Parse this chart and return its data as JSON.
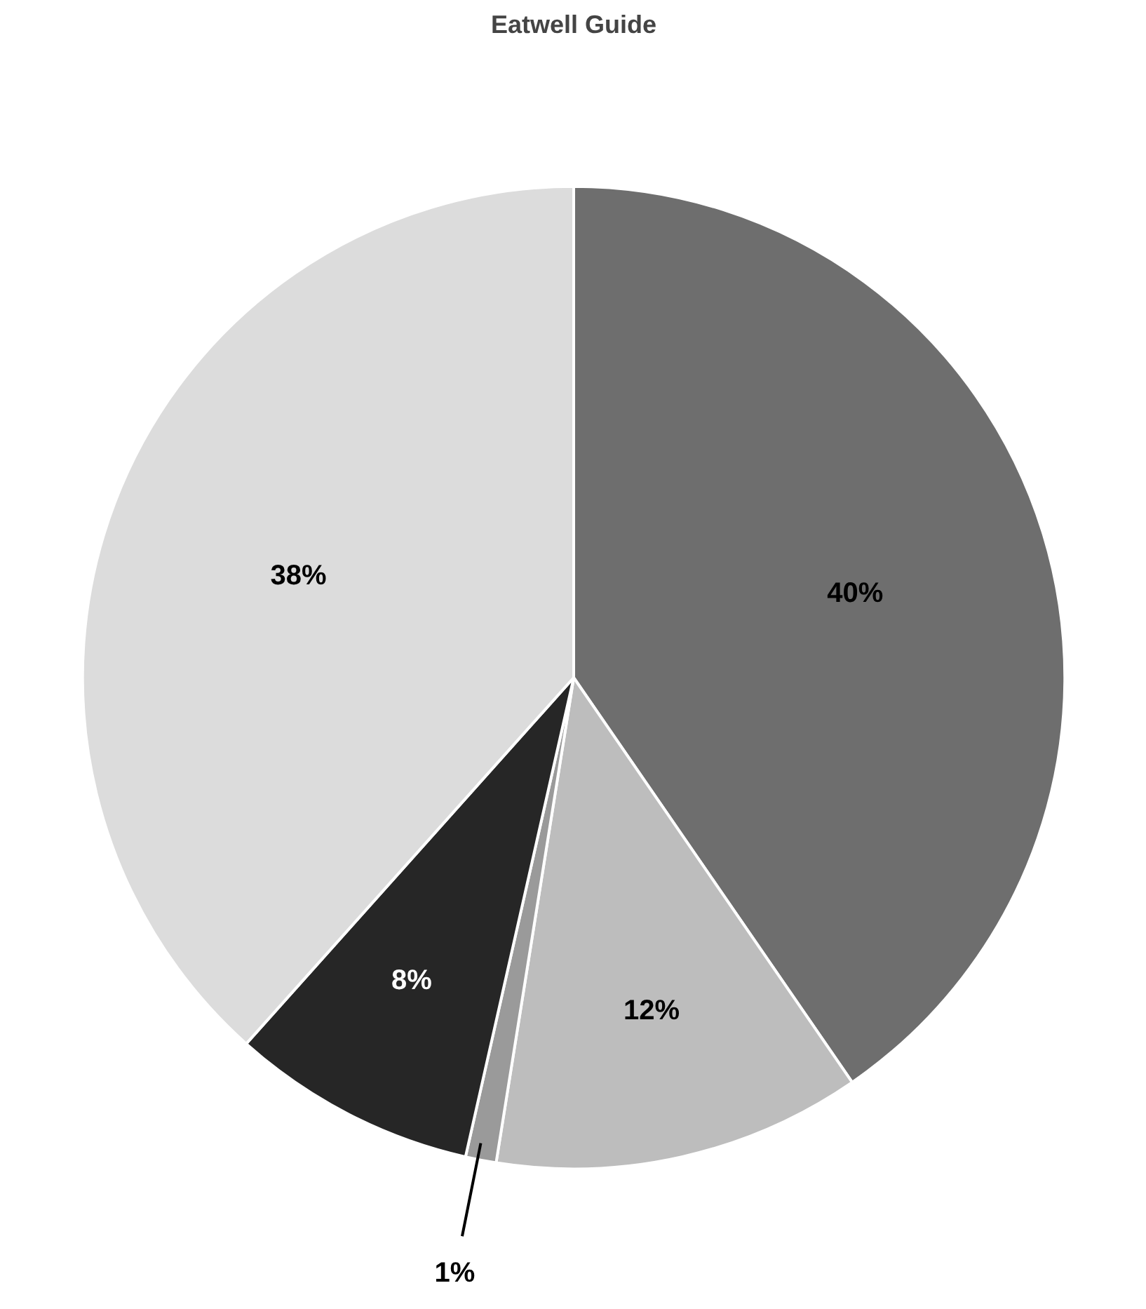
{
  "chart_data": {
    "type": "pie",
    "title": "Eatwell Guide",
    "categories": [
      null,
      null,
      null,
      null,
      null
    ],
    "values": [
      40,
      12,
      1,
      8,
      38
    ],
    "colors": [
      "#6e6e6e",
      "#bdbdbd",
      "#9a9a9a",
      "#262626",
      "#dcdcdc"
    ],
    "value_labels": [
      "40%",
      "12%",
      "1%",
      "8%",
      "38%"
    ]
  }
}
